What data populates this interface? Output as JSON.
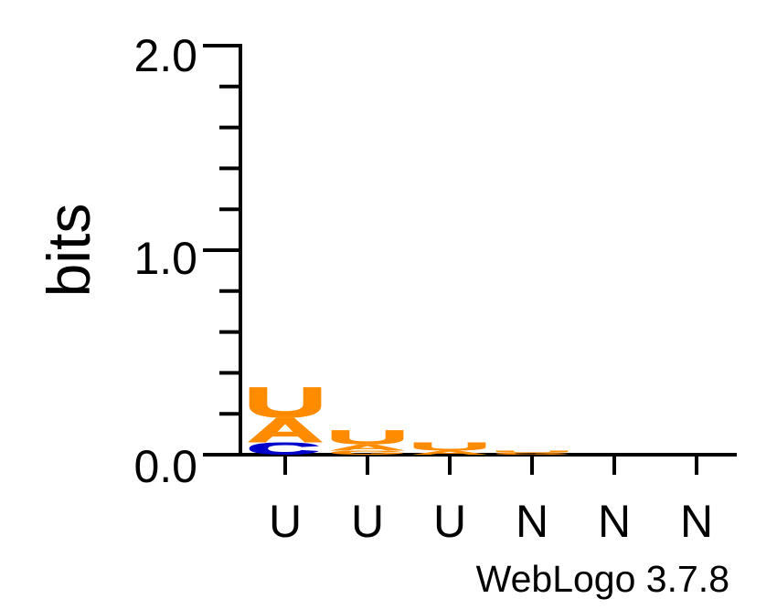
{
  "chart_data": {
    "type": "sequence-logo",
    "ylabel": "bits",
    "ylim": [
      0,
      2.0
    ],
    "y_ticks": [
      "0.0",
      "1.0",
      "2.0"
    ],
    "positions": [
      "U",
      "U",
      "U",
      "N",
      "N",
      "N"
    ],
    "credit": "WebLogo 3.7.8",
    "colors": {
      "U": "#ff8c00",
      "A": "#ff8c00",
      "C": "#0000cc",
      "G": "#ff8c00"
    },
    "stacks": [
      [
        {
          "letter": "C",
          "height": 0.06
        },
        {
          "letter": "A",
          "height": 0.12
        },
        {
          "letter": "U",
          "height": 0.15
        }
      ],
      [
        {
          "letter": "G",
          "height": 0.02
        },
        {
          "letter": "A",
          "height": 0.03
        },
        {
          "letter": "U",
          "height": 0.07
        }
      ],
      [
        {
          "letter": "A",
          "height": 0.02
        },
        {
          "letter": "U",
          "height": 0.04
        }
      ],
      [
        {
          "letter": "G",
          "height": 0.01
        },
        {
          "letter": "U",
          "height": 0.01
        }
      ],
      [],
      []
    ]
  }
}
